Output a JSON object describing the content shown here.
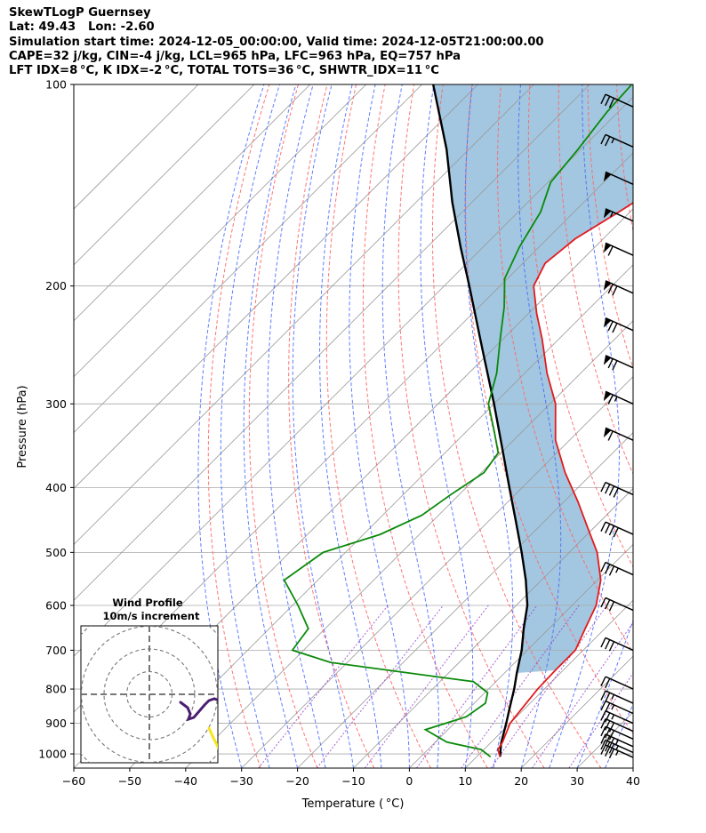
{
  "header": {
    "line1": "SkewTLogP Guernsey",
    "line2": "Lat: 49.43   Lon: -2.60",
    "line3": "Simulation start time: 2024-12-05_00:00:00, Valid time: 2024-12-05T21:00:00.00",
    "line4": "CAPE=32 j/kg, CIN=-4 j/kg, LCL=965 hPa, LFC=963 hPa, EQ=757 hPa",
    "line5": "LFT IDX=8 °C, K IDX=-2 °C, TOTAL TOTS=36 °C, SHWTR_IDX=11 °C"
  },
  "chart_data": {
    "type": "skewt",
    "xlabel": "Temperature ( °C)",
    "ylabel": "Pressure (hPa)",
    "xlim": [
      -60,
      40
    ],
    "ylim": [
      1050,
      100
    ],
    "x_ticks": [
      -60,
      -50,
      -40,
      -30,
      -20,
      -10,
      0,
      10,
      20,
      30,
      40
    ],
    "y_ticks": [
      100,
      200,
      300,
      400,
      500,
      600,
      700,
      800,
      900,
      1000
    ],
    "y_scale": "log",
    "skew": "isotherms tilted 45 degrees to the right",
    "grid": true,
    "colors": {
      "temperature": "#e31a1c",
      "dewpoint": "#0a8a0a",
      "parcel": "#000000",
      "cape_fill": "#a3c7e0",
      "dry_adiabats": "#ff6666",
      "moist_adiabats": "#4466ff",
      "mixing_ratio": "#9944cc",
      "isotherms": "#999999"
    },
    "temperature_profile": [
      {
        "p": 1010,
        "t": 14.2
      },
      {
        "p": 985,
        "t": 12.5
      },
      {
        "p": 960,
        "t": 12.0
      },
      {
        "p": 900,
        "t": 10.0
      },
      {
        "p": 850,
        "t": 9.4
      },
      {
        "p": 800,
        "t": 8.8
      },
      {
        "p": 750,
        "t": 8.6
      },
      {
        "p": 700,
        "t": 8.6
      },
      {
        "p": 650,
        "t": 6.5
      },
      {
        "p": 600,
        "t": 4.3
      },
      {
        "p": 550,
        "t": 0.6
      },
      {
        "p": 500,
        "t": -5.0
      },
      {
        "p": 460,
        "t": -11.0
      },
      {
        "p": 420,
        "t": -17.5
      },
      {
        "p": 380,
        "t": -25.0
      },
      {
        "p": 340,
        "t": -32.5
      },
      {
        "p": 300,
        "t": -39.0
      },
      {
        "p": 270,
        "t": -46.0
      },
      {
        "p": 240,
        "t": -53.0
      },
      {
        "p": 220,
        "t": -58.5
      },
      {
        "p": 200,
        "t": -64.0
      },
      {
        "p": 185,
        "t": -66.0
      },
      {
        "p": 170,
        "t": -65.0
      },
      {
        "p": 155,
        "t": -62.0
      },
      {
        "p": 140,
        "t": -59.0
      },
      {
        "p": 125,
        "t": -57.5
      },
      {
        "p": 110,
        "t": -55.5
      },
      {
        "p": 100,
        "t": -54.5
      }
    ],
    "dewpoint_profile": [
      {
        "p": 1010,
        "t": 12.5
      },
      {
        "p": 985,
        "t": 9.5
      },
      {
        "p": 960,
        "t": 2.0
      },
      {
        "p": 920,
        "t": -4.0
      },
      {
        "p": 880,
        "t": 1.0
      },
      {
        "p": 840,
        "t": 2.0
      },
      {
        "p": 810,
        "t": 0.5
      },
      {
        "p": 780,
        "t": -4.0
      },
      {
        "p": 730,
        "t": -33.0
      },
      {
        "p": 700,
        "t": -42.0
      },
      {
        "p": 650,
        "t": -43.0
      },
      {
        "p": 600,
        "t": -49.0
      },
      {
        "p": 550,
        "t": -56.0
      },
      {
        "p": 500,
        "t": -54.0
      },
      {
        "p": 470,
        "t": -47.0
      },
      {
        "p": 440,
        "t": -43.0
      },
      {
        "p": 410,
        "t": -41.5
      },
      {
        "p": 380,
        "t": -39.5
      },
      {
        "p": 355,
        "t": -40.5
      },
      {
        "p": 330,
        "t": -45.0
      },
      {
        "p": 300,
        "t": -51.0
      },
      {
        "p": 270,
        "t": -55.0
      },
      {
        "p": 240,
        "t": -60.5
      },
      {
        "p": 215,
        "t": -65.5
      },
      {
        "p": 195,
        "t": -70.5
      },
      {
        "p": 175,
        "t": -73.5
      },
      {
        "p": 155,
        "t": -76.0
      },
      {
        "p": 140,
        "t": -79.5
      },
      {
        "p": 125,
        "t": -80.5
      },
      {
        "p": 110,
        "t": -82.0
      },
      {
        "p": 100,
        "t": -82.5
      }
    ],
    "parcel_profile": [
      {
        "p": 1010,
        "t": 14.2
      },
      {
        "p": 965,
        "t": 12.0
      },
      {
        "p": 900,
        "t": 9.3
      },
      {
        "p": 850,
        "t": 7.0
      },
      {
        "p": 800,
        "t": 4.6
      },
      {
        "p": 757,
        "t": 2.2
      },
      {
        "p": 700,
        "t": -1.0
      },
      {
        "p": 650,
        "t": -4.5
      },
      {
        "p": 600,
        "t": -8.0
      },
      {
        "p": 550,
        "t": -12.8
      },
      {
        "p": 500,
        "t": -18.5
      },
      {
        "p": 450,
        "t": -25.0
      },
      {
        "p": 400,
        "t": -32.3
      },
      {
        "p": 350,
        "t": -40.5
      },
      {
        "p": 300,
        "t": -50.0
      },
      {
        "p": 250,
        "t": -61.5
      },
      {
        "p": 200,
        "t": -75.5
      },
      {
        "p": 175,
        "t": -84.0
      },
      {
        "p": 150,
        "t": -93.5
      },
      {
        "p": 125,
        "t": -104.0
      },
      {
        "p": 100,
        "t": -118.0
      }
    ],
    "wind_barbs": [
      {
        "p": 1012,
        "speed_kt": 35
      },
      {
        "p": 995,
        "speed_kt": 35
      },
      {
        "p": 975,
        "speed_kt": 35
      },
      {
        "p": 950,
        "speed_kt": 30
      },
      {
        "p": 925,
        "speed_kt": 30
      },
      {
        "p": 900,
        "speed_kt": 25
      },
      {
        "p": 870,
        "speed_kt": 25
      },
      {
        "p": 840,
        "speed_kt": 25
      },
      {
        "p": 800,
        "speed_kt": 20
      },
      {
        "p": 700,
        "speed_kt": 30
      },
      {
        "p": 610,
        "speed_kt": 30
      },
      {
        "p": 540,
        "speed_kt": 35
      },
      {
        "p": 470,
        "speed_kt": 40
      },
      {
        "p": 410,
        "speed_kt": 40
      },
      {
        "p": 340,
        "speed_kt": 60
      },
      {
        "p": 300,
        "speed_kt": 65
      },
      {
        "p": 265,
        "speed_kt": 70
      },
      {
        "p": 233,
        "speed_kt": 70
      },
      {
        "p": 205,
        "speed_kt": 70
      },
      {
        "p": 180,
        "speed_kt": 60
      },
      {
        "p": 160,
        "speed_kt": 55
      },
      {
        "p": 141,
        "speed_kt": 50
      },
      {
        "p": 124,
        "speed_kt": 25
      },
      {
        "p": 108,
        "speed_kt": 30
      }
    ],
    "hodograph": {
      "title": "Wind Profile",
      "subtitle": "10m/s increment",
      "ring_increment_ms": 10,
      "rings": 4
    }
  }
}
